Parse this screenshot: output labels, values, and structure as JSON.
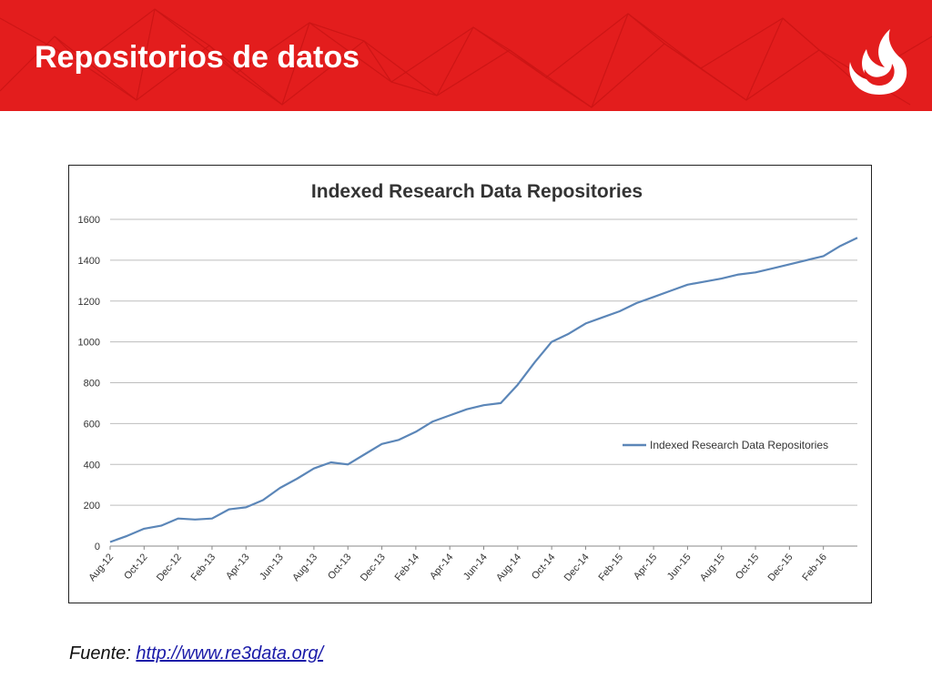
{
  "slide": {
    "title": "Repositorios de datos",
    "header_color": "#e31d1d",
    "logo_icon": "upc-flame-logo"
  },
  "source": {
    "label": "Fuente: ",
    "link_text": "http://www.re3data.org/"
  },
  "chart_data": {
    "type": "line",
    "title": "Indexed Research Data Repositories",
    "xlabel": "",
    "ylabel": "",
    "ylim": [
      0,
      1600
    ],
    "yticks": [
      0,
      200,
      400,
      600,
      800,
      1000,
      1200,
      1400,
      1600
    ],
    "grid": true,
    "legend_position": "right",
    "line_color": "#5b86b8",
    "x_tick_labels": [
      "Aug-12",
      "Oct-12",
      "Dec-12",
      "Feb-13",
      "Apr-13",
      "Jun-13",
      "Aug-13",
      "Oct-13",
      "Dec-13",
      "Feb-14",
      "Apr-14",
      "Jun-14",
      "Aug-14",
      "Oct-14",
      "Dec-14",
      "Feb-15",
      "Apr-15",
      "Jun-15",
      "Aug-15",
      "Oct-15",
      "Dec-15",
      "Feb-16"
    ],
    "x_range": [
      "Aug-12",
      "Apr-16"
    ],
    "series": [
      {
        "name": "Indexed Research Data Repositories",
        "x": [
          "Aug-12",
          "Sep-12",
          "Oct-12",
          "Nov-12",
          "Dec-12",
          "Jan-13",
          "Feb-13",
          "Mar-13",
          "Apr-13",
          "May-13",
          "Jun-13",
          "Jul-13",
          "Aug-13",
          "Sep-13",
          "Oct-13",
          "Nov-13",
          "Dec-13",
          "Jan-14",
          "Feb-14",
          "Mar-14",
          "Apr-14",
          "May-14",
          "Jun-14",
          "Jul-14",
          "Aug-14",
          "Sep-14",
          "Oct-14",
          "Nov-14",
          "Dec-14",
          "Jan-15",
          "Feb-15",
          "Mar-15",
          "Apr-15",
          "May-15",
          "Jun-15",
          "Jul-15",
          "Aug-15",
          "Sep-15",
          "Oct-15",
          "Nov-15",
          "Dec-15",
          "Jan-16",
          "Feb-16",
          "Mar-16",
          "Apr-16"
        ],
        "values": [
          20,
          50,
          85,
          100,
          135,
          130,
          135,
          180,
          190,
          225,
          285,
          330,
          380,
          410,
          400,
          450,
          500,
          520,
          560,
          610,
          640,
          670,
          690,
          700,
          790,
          900,
          1000,
          1040,
          1090,
          1120,
          1150,
          1190,
          1220,
          1250,
          1280,
          1295,
          1310,
          1330,
          1340,
          1360,
          1380,
          1400,
          1420,
          1470,
          1510
        ]
      }
    ]
  }
}
